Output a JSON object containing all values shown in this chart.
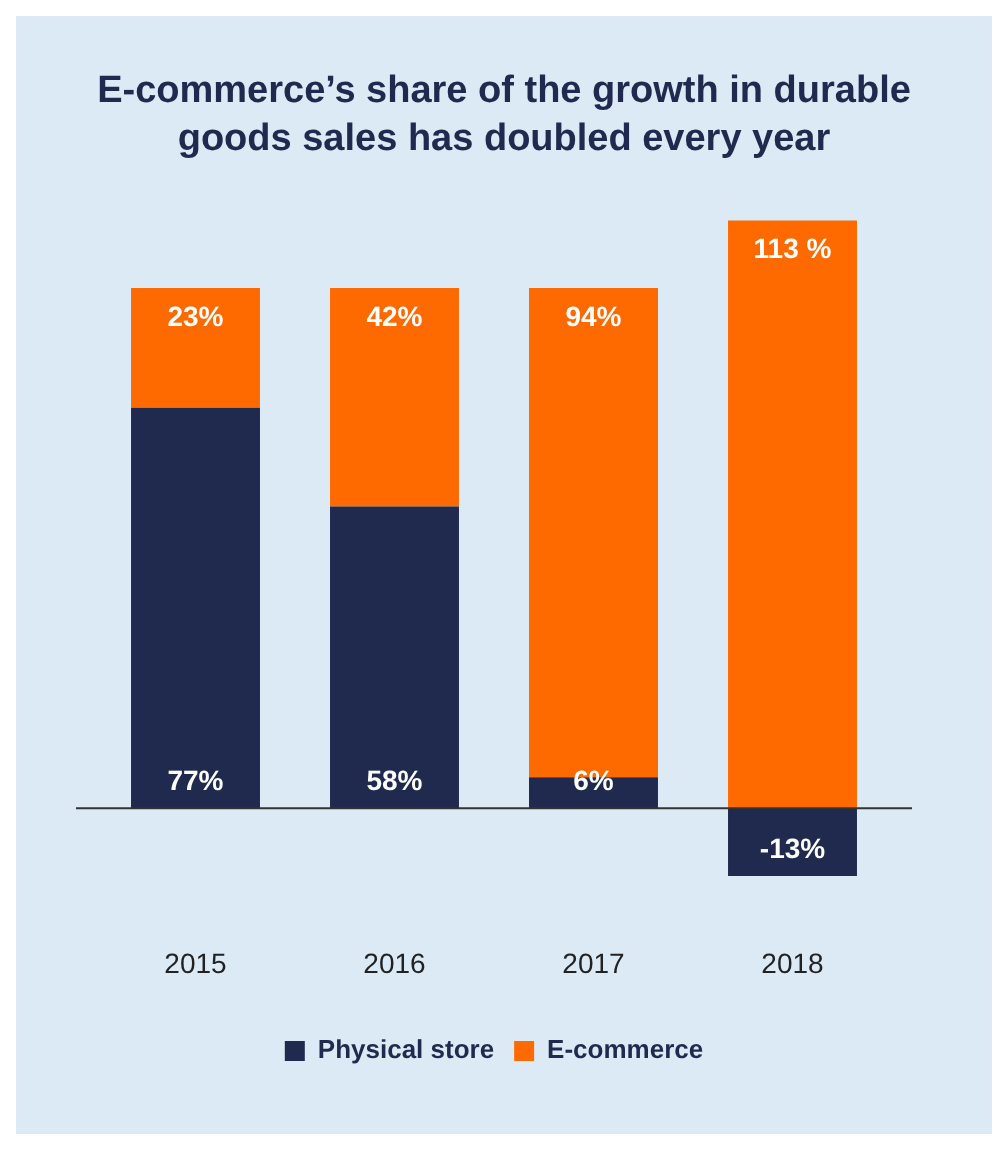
{
  "chart_data": {
    "type": "bar",
    "title": "E-commerce’s share of the growth in durable goods sales has doubled every year",
    "categories": [
      "2015",
      "2016",
      "2017",
      "2018"
    ],
    "stacked": true,
    "legend": "bottom",
    "grid": false,
    "tick_labels": "x",
    "series": [
      {
        "name": "Physical store",
        "color": "#1f2a4e",
        "values": [
          77,
          58,
          6,
          -13
        ],
        "value_labels": [
          "77%",
          "58%",
          "6%",
          "-13%"
        ]
      },
      {
        "name": "E-commerce",
        "color": "#ff6a00",
        "values": [
          23,
          42,
          94,
          113
        ],
        "value_labels": [
          "23%",
          "42%",
          "94%",
          "113 %"
        ]
      }
    ]
  }
}
